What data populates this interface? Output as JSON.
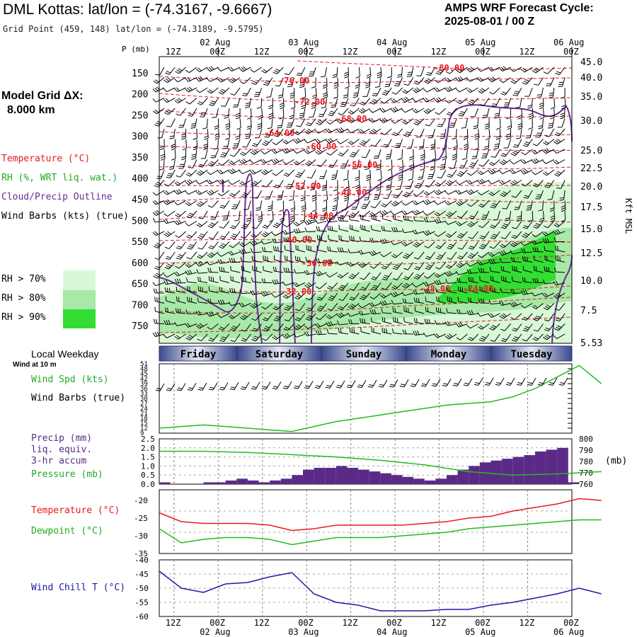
{
  "header": {
    "title": "DML Kottas:  lat/lon = (-74.3167, -9.6667)",
    "subtitle": "Grid Point (459, 148) lat/lon = (-74.3189, -9.5795)",
    "cycle_title": "AMPS WRF Forecast Cycle:",
    "cycle_value": "2025-08-01 / 00  Z"
  },
  "model_grid": {
    "label": "Model Grid ΔX:",
    "value": "8.000 km"
  },
  "legend": {
    "temperature": "Temperature (°C)",
    "rh": "RH (%, WRT liq. wat.)",
    "cloud": "Cloud/Precip Outline",
    "wind_barbs": "Wind Barbs (kts) (true)",
    "rh70": "RH > 70%",
    "rh80": "RH > 80%",
    "rh90": "RH > 90%"
  },
  "colors": {
    "temperature": "#e8191f",
    "rh70": "#d8f8d8",
    "rh80": "#a8e8a8",
    "rh90": "#33dd33",
    "cloud": "#6a2c91",
    "line_green": "#22bb22",
    "precip": "#5b2a86",
    "windchill": "#1a1aaa",
    "weekday_bar": "#3a4a8c"
  },
  "time_axis": {
    "top_hours": [
      "12Z",
      "00Z",
      "12Z",
      "00Z",
      "12Z",
      "00Z",
      "12Z",
      "00Z",
      "12Z",
      "00Z"
    ],
    "top_dates": [
      "02 Aug",
      "03 Aug",
      "04 Aug",
      "05 Aug",
      "06 Aug"
    ],
    "bottom_hours": [
      "12Z",
      "00Z",
      "12Z",
      "00Z",
      "12Z",
      "00Z",
      "12Z",
      "00Z",
      "12Z",
      "00Z"
    ],
    "bottom_dates": [
      "02 Aug",
      "03 Aug",
      "04 Aug",
      "05 Aug",
      "06 Aug"
    ]
  },
  "weekday": {
    "title": "Local Weekday",
    "wind_note": "Wind at 10 m",
    "days": [
      "Friday",
      "Saturday",
      "Sunday",
      "Monday",
      "Tuesday"
    ]
  },
  "panels": {
    "wind_spd_label": "Wind Spd (kts)",
    "wind_barbs_label": "Wind Barbs (true)",
    "precip_label_1": "Precip (mm)",
    "precip_label_2": "liq. equiv.",
    "precip_label_3": "3-hr accum",
    "pressure_label": "Pressure (mb)",
    "pressure_units": "(mb)",
    "temp_label": "Temperature (°C)",
    "dewpoint_label": "Dewpoint (°C)",
    "windchill_label": "Wind Chill T (°C)"
  },
  "chart_data": [
    {
      "type": "line",
      "title": "Vertical cross-section time-height",
      "ylabel": "P (mb)",
      "y2label": "Kft MSL",
      "y_ticks": [
        150,
        200,
        250,
        300,
        350,
        400,
        450,
        500,
        550,
        600,
        650,
        700,
        750
      ],
      "y2_ticks": [
        "45.0",
        "40.0",
        "35.0",
        "30.0",
        "25.0",
        "22.5",
        "20.0",
        "17.5",
        "15.0",
        "12.5",
        "10.0",
        "7.5",
        "5.53"
      ],
      "temperature_labels": [
        "-80.00",
        "-76.00",
        "-72.00",
        "-68.00",
        "-64.00",
        "-60.00",
        "-56.00",
        "-52.00",
        "-48.00",
        "-44.00",
        "-40.00",
        "-36.00",
        "-32.00",
        "-28.00",
        "-24.00"
      ]
    },
    {
      "type": "line",
      "title": "",
      "ylabel": "Wind Spd (kts)",
      "y_ticks": [
        9,
        12,
        15,
        18,
        21,
        24,
        27,
        30,
        33,
        36,
        39,
        42,
        45,
        48,
        51
      ],
      "ylim": [
        9,
        51
      ],
      "x_hours": [
        0,
        6,
        12,
        18,
        24,
        30,
        36,
        42,
        48,
        54,
        60,
        66,
        72,
        78,
        84,
        90,
        96,
        102,
        108,
        114,
        120
      ],
      "wind_speed": [
        12,
        13,
        14,
        13,
        12,
        11,
        10,
        13,
        16,
        18,
        20,
        22,
        24,
        26,
        27,
        28,
        31,
        36,
        43,
        50,
        39
      ]
    },
    {
      "type": "bar",
      "title": "",
      "ylabel": "Precip (mm)",
      "y_ticks": [
        "0.0",
        "0.5",
        "1.0",
        "1.5",
        "2.0",
        "2.5"
      ],
      "y2_ticks": [
        760,
        770,
        780,
        790,
        800
      ],
      "x_hours": [
        0,
        3,
        6,
        9,
        12,
        15,
        18,
        21,
        24,
        27,
        30,
        33,
        36,
        39,
        42,
        45,
        48,
        51,
        54,
        57,
        60,
        63,
        66,
        69,
        72,
        75,
        78,
        81,
        84,
        87,
        90,
        93,
        96,
        99,
        102,
        105,
        108,
        111
      ],
      "precip": [
        0.1,
        0.0,
        0.0,
        0.0,
        0.1,
        0.1,
        0.2,
        0.3,
        0.2,
        0.1,
        0.2,
        0.3,
        0.5,
        0.8,
        0.9,
        0.9,
        1.0,
        0.9,
        0.8,
        0.7,
        0.6,
        0.5,
        0.4,
        0.3,
        0.2,
        0.3,
        0.5,
        0.8,
        1.0,
        1.2,
        1.3,
        1.4,
        1.5,
        1.6,
        1.8,
        1.9,
        2.0,
        0.1
      ],
      "pressure_hours": [
        0,
        12,
        24,
        36,
        48,
        60,
        72,
        84,
        96,
        108,
        120
      ],
      "pressure": [
        789,
        789,
        788,
        786,
        784,
        781,
        777,
        771,
        768,
        769,
        771
      ]
    },
    {
      "type": "line",
      "title": "",
      "ylabel": "Temperature (°C)",
      "y_ticks": [
        -20,
        -25,
        -30,
        -35
      ],
      "ylim": [
        -35,
        -17
      ],
      "x_hours": [
        0,
        6,
        12,
        18,
        24,
        30,
        36,
        42,
        48,
        54,
        60,
        66,
        72,
        78,
        84,
        90,
        96,
        102,
        108,
        114,
        120
      ],
      "temperature": [
        -23.5,
        -26,
        -26.5,
        -26.5,
        -26.5,
        -27,
        -28.5,
        -28,
        -27,
        -27,
        -27,
        -27,
        -26.5,
        -26,
        -25,
        -24.5,
        -23,
        -22,
        -21,
        -19.5,
        -20
      ],
      "dewpoint": [
        -28,
        -32,
        -31,
        -30.5,
        -30.5,
        -31,
        -32.5,
        -31.5,
        -30.5,
        -30.5,
        -30.5,
        -30,
        -29.5,
        -29,
        -28,
        -27.5,
        -27,
        -26.5,
        -26,
        -25.5,
        -25.5
      ]
    },
    {
      "type": "line",
      "title": "",
      "ylabel": "Wind Chill T (°C)",
      "y_ticks": [
        -40,
        -45,
        -50,
        -55,
        -60
      ],
      "ylim": [
        -60,
        -40
      ],
      "x_hours": [
        0,
        6,
        12,
        18,
        24,
        30,
        36,
        42,
        48,
        54,
        60,
        66,
        72,
        78,
        84,
        90,
        96,
        102,
        108,
        114,
        120
      ],
      "windchill": [
        -44,
        -50,
        -51.5,
        -48.5,
        -48,
        -46,
        -44.5,
        -52,
        -55,
        -56,
        -58,
        -58,
        -58,
        -57.5,
        -57.5,
        -56,
        -55,
        -53.5,
        -52,
        -50,
        -52
      ]
    }
  ]
}
